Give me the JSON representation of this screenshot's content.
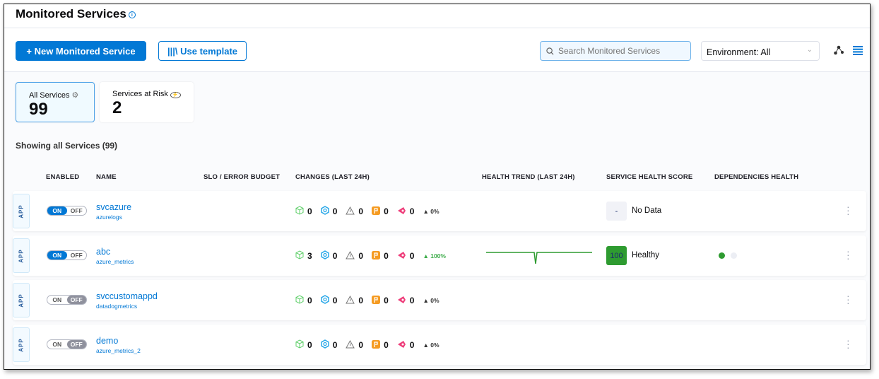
{
  "page": {
    "title": "Monitored Services"
  },
  "toolbar": {
    "new_label": "New Monitored Service",
    "template_label": "Use template",
    "search_placeholder": "Search Monitored Services",
    "environment": "Environment: All"
  },
  "cards": [
    {
      "label": "All Services",
      "count": "99"
    },
    {
      "label": "Services at Risk",
      "count": "2"
    }
  ],
  "showing": "Showing all Services (99)",
  "columns": [
    "ENABLED",
    "NAME",
    "SLO / ERROR BUDGET",
    "CHANGES (LAST 24H)",
    "HEALTH TREND (LAST 24H)",
    "SERVICE HEALTH SCORE",
    "DEPENDENCIES HEALTH"
  ],
  "colors": {
    "accent": "#0278d5",
    "healthy": "#2e9b30"
  },
  "toggle": {
    "on": "ON",
    "off": "OFF"
  },
  "app_label": "APP",
  "rows": [
    {
      "name": "svcazure",
      "source": "azurelogs",
      "enabled": true,
      "changes": [
        "0",
        "0",
        "0",
        "0",
        "0"
      ],
      "change_pct": "0%",
      "trend": false,
      "score": "-",
      "status": "No Data",
      "deps": false
    },
    {
      "name": "abc",
      "source": "azure_metrics",
      "enabled": true,
      "changes": [
        "3",
        "0",
        "0",
        "0",
        "0"
      ],
      "change_pct": "100%",
      "trend": true,
      "score": "100",
      "status": "Healthy",
      "deps": true
    },
    {
      "name": "svccustomappd",
      "source": "datadogmetrics",
      "enabled": false,
      "changes": [
        "0",
        "0",
        "0",
        "0",
        "0"
      ],
      "change_pct": "0%",
      "trend": false,
      "score": "",
      "status": "",
      "deps": false
    },
    {
      "name": "demo",
      "source": "azure_metrics_2",
      "enabled": false,
      "changes": [
        "0",
        "0",
        "0",
        "0",
        "0"
      ],
      "change_pct": "0%",
      "trend": false,
      "score": "",
      "status": "",
      "deps": false
    }
  ]
}
